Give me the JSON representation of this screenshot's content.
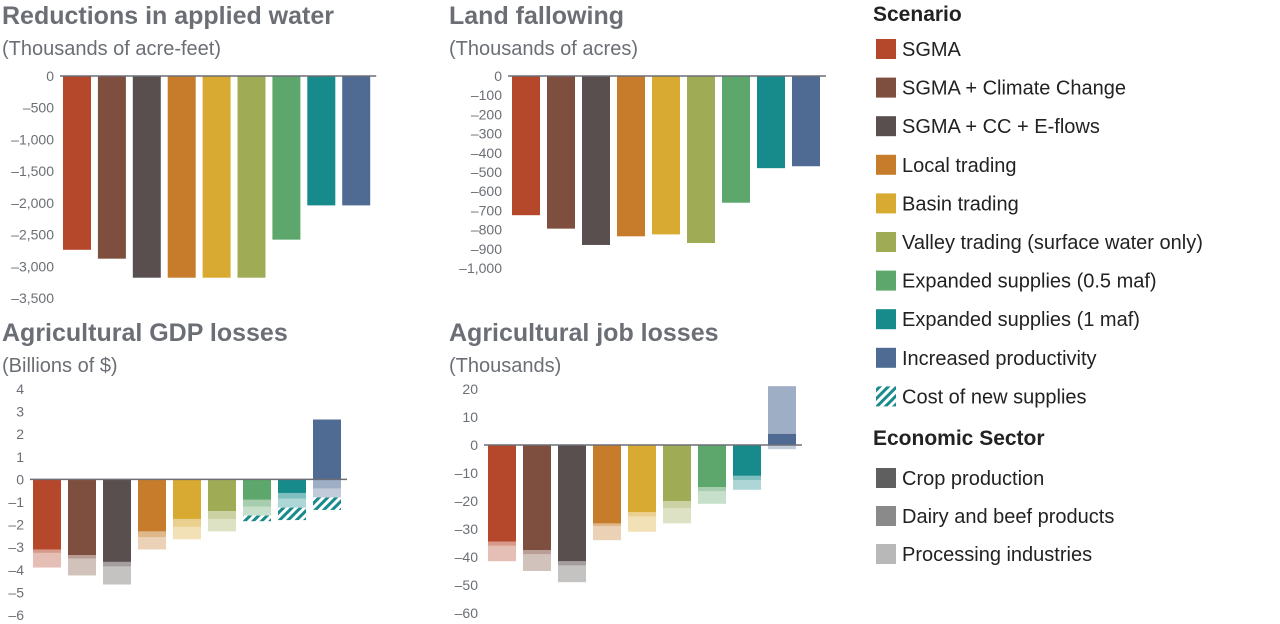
{
  "colors": {
    "title": "#6b6f75",
    "tick": "#6b6f75",
    "axis": "#6b6f75",
    "legend_text": "#222222",
    "hatch": "#1a8a8c",
    "scenario": [
      "#b5472b",
      "#7e4f3e",
      "#5a4f4f",
      "#c77c2c",
      "#d9aa32",
      "#a0ab55",
      "#5da66c",
      "#178a8c",
      "#4f6b93"
    ],
    "sector": [
      "#5f5f5f",
      "#8a8a8a",
      "#b8b8b8"
    ]
  },
  "legend": {
    "scenario_title": "Scenario",
    "scenario_items": [
      "SGMA",
      "SGMA + Climate Change",
      "SGMA + CC + E-flows",
      "Local trading",
      "Basin trading",
      "Valley trading (surface water only)",
      "Expanded supplies (0.5 maf)",
      "Expanded supplies (1 maf)",
      "Increased productivity",
      "Cost of new supplies"
    ],
    "sector_title": "Economic Sector",
    "sector_items": [
      "Crop production",
      "Dairy and beef products",
      "Processing industries"
    ]
  },
  "chart_data": [
    {
      "type": "bar",
      "title": "Reductions in applied water",
      "subtitle": "(Thousands of acre-feet)",
      "ylim": [
        -3500,
        0
      ],
      "yticks": [
        0,
        -500,
        -1000,
        -1500,
        -2000,
        -2500,
        -3000,
        -3500
      ],
      "ytick_labels": [
        "0",
        "–500",
        "–1,000",
        "–1,500",
        "–2,000",
        "–2,500",
        "–3,000",
        "–3,500"
      ],
      "categories": [
        "SGMA",
        "SGMA + Climate Change",
        "SGMA + CC + E-flows",
        "Local trading",
        "Basin trading",
        "Valley trading (surface water only)",
        "Expanded supplies (0.5 maf)",
        "Expanded supplies (1 maf)",
        "Increased productivity"
      ],
      "values": [
        -2740,
        -2880,
        -3180,
        -3180,
        -3180,
        -3180,
        -2580,
        -2040,
        -2040
      ]
    },
    {
      "type": "bar",
      "title": "Land fallowing",
      "subtitle": "(Thousands of acres)",
      "ylim": [
        -1000,
        0
      ],
      "yticks": [
        0,
        -100,
        -200,
        -300,
        -400,
        -500,
        -600,
        -700,
        -800,
        -900,
        -1000
      ],
      "ytick_labels": [
        "0",
        "–100",
        "–200",
        "–300",
        "–400",
        "–500",
        "–600",
        "–700",
        "–800",
        "–900",
        "–1,000"
      ],
      "categories": [
        "SGMA",
        "SGMA + Climate Change",
        "SGMA + CC + E-flows",
        "Local trading",
        "Basin trading",
        "Valley trading (surface water only)",
        "Expanded supplies (0.5 maf)",
        "Expanded supplies (1 maf)",
        "Increased productivity"
      ],
      "values": [
        -725,
        -795,
        -880,
        -835,
        -825,
        -870,
        -660,
        -480,
        -470
      ]
    },
    {
      "type": "bar",
      "stacked": true,
      "title": "Agricultural GDP losses",
      "subtitle": "(Billions of $)",
      "ylim": [
        -6,
        4
      ],
      "yticks": [
        4,
        3,
        2,
        1,
        0,
        -1,
        -2,
        -3,
        -4,
        -5,
        -6
      ],
      "ytick_labels": [
        "4",
        "3",
        "2",
        "1",
        "0",
        "–1",
        "–2",
        "–3",
        "–4",
        "–5",
        "–6"
      ],
      "categories": [
        "SGMA",
        "SGMA + Climate Change",
        "SGMA + CC + E-flows",
        "Local trading",
        "Basin trading",
        "Valley trading (surface water only)",
        "Expanded supplies (0.5 maf)",
        "Expanded supplies (1 maf)",
        "Increased productivity"
      ],
      "series": [
        {
          "name": "Crop production",
          "values": [
            -3.1,
            -3.35,
            -3.65,
            -2.3,
            -1.75,
            -1.4,
            -0.9,
            -0.6,
            2.65
          ]
        },
        {
          "name": "Dairy and beef products",
          "values": [
            -0.15,
            -0.15,
            -0.2,
            -0.25,
            -0.35,
            -0.35,
            -0.3,
            -0.25,
            -0.4
          ]
        },
        {
          "name": "Processing industries",
          "values": [
            -0.65,
            -0.75,
            -0.8,
            -0.55,
            -0.55,
            -0.55,
            -0.4,
            -0.4,
            -0.4
          ]
        },
        {
          "name": "Cost of new supplies",
          "values": [
            0,
            0,
            0,
            0,
            0,
            0,
            -0.25,
            -0.55,
            -0.55
          ]
        }
      ]
    },
    {
      "type": "bar",
      "stacked": true,
      "title": "Agricultural job losses",
      "subtitle": "(Thousands)",
      "ylim": [
        -60,
        20
      ],
      "yticks": [
        20,
        10,
        0,
        -10,
        -20,
        -30,
        -40,
        -50,
        -60
      ],
      "ytick_labels": [
        "20",
        "10",
        "0",
        "–10",
        "–20",
        "–30",
        "–40",
        "–50",
        "–60"
      ],
      "categories": [
        "SGMA",
        "SGMA + Climate Change",
        "SGMA + CC + E-flows",
        "Local trading",
        "Basin trading",
        "Valley trading (surface water only)",
        "Expanded supplies (0.5 maf)",
        "Expanded supplies (1 maf)",
        "Increased productivity"
      ],
      "series": [
        {
          "name": "Crop production",
          "values": [
            -34.5,
            -37.5,
            -41.5,
            -28.0,
            -24.0,
            -20.0,
            -15.0,
            -11.0,
            4.0
          ]
        },
        {
          "name": "Dairy and beef products",
          "values": [
            -1.5,
            -1.5,
            -1.5,
            -1.0,
            -1.5,
            -2.5,
            -1.5,
            -1.5,
            17.0
          ]
        },
        {
          "name": "Processing industries",
          "values": [
            -5.5,
            -6.0,
            -6.0,
            -5.0,
            -5.5,
            -5.5,
            -4.5,
            -3.5,
            -1.5
          ]
        }
      ]
    }
  ]
}
